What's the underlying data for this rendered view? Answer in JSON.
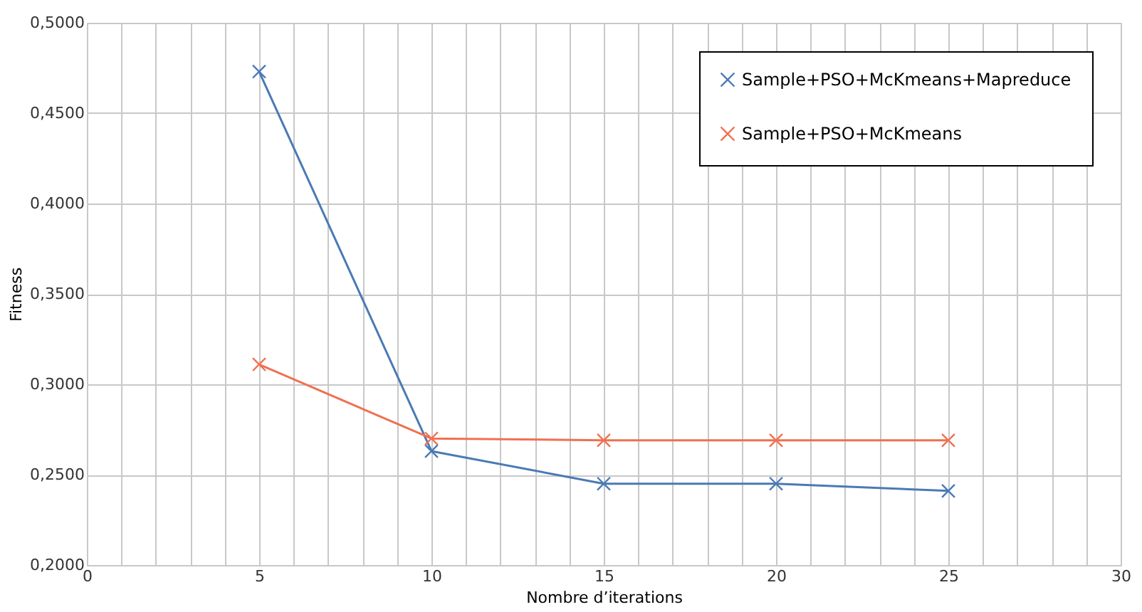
{
  "chart_data": {
    "type": "line",
    "xlabel": "Nombre d’iterations",
    "ylabel": "Fitness",
    "x": [
      5,
      10,
      15,
      20,
      25
    ],
    "series": [
      {
        "name": "Sample+PSO+McKmeans+Mapreduce",
        "color": "#4a7ab5",
        "values": [
          0.473,
          0.263,
          0.245,
          0.245,
          0.241
        ]
      },
      {
        "name": "Sample+PSO+McKmeans",
        "color": "#f07050",
        "values": [
          0.311,
          0.27,
          0.269,
          0.269,
          0.269
        ]
      }
    ],
    "xlim": [
      0,
      30
    ],
    "xticks": [
      0,
      {
        "value": 1,
        "label": null
      },
      {
        "value": 2,
        "label": null
      },
      {
        "value": 3,
        "label": null
      },
      {
        "value": 4,
        "label": null
      },
      5,
      {
        "value": 6,
        "label": null
      },
      {
        "value": 7,
        "label": null
      },
      {
        "value": 8,
        "label": null
      },
      {
        "value": 9,
        "label": null
      },
      10,
      {
        "value": 11,
        "label": null
      },
      {
        "value": 12,
        "label": null
      },
      {
        "value": 13,
        "label": null
      },
      {
        "value": 14,
        "label": null
      },
      15,
      {
        "value": 16,
        "label": null
      },
      {
        "value": 17,
        "label": null
      },
      {
        "value": 18,
        "label": null
      },
      {
        "value": 19,
        "label": null
      },
      20,
      {
        "value": 21,
        "label": null
      },
      {
        "value": 22,
        "label": null
      },
      {
        "value": 23,
        "label": null
      },
      {
        "value": 24,
        "label": null
      },
      25,
      {
        "value": 26,
        "label": null
      },
      {
        "value": 27,
        "label": null
      },
      {
        "value": 28,
        "label": null
      },
      {
        "value": 29,
        "label": null
      },
      30
    ],
    "ylim": [
      0.2,
      0.5
    ],
    "yticks": [
      {
        "value": 0.2,
        "label": "0,2000"
      },
      {
        "value": 0.25,
        "label": "0,2500"
      },
      {
        "value": 0.3,
        "label": "0,3000"
      },
      {
        "value": 0.35,
        "label": "0,3500"
      },
      {
        "value": 0.4,
        "label": "0,4000"
      },
      {
        "value": 0.45,
        "label": "0,4500"
      },
      {
        "value": 0.5,
        "label": "0,5000"
      }
    ],
    "grid": true,
    "legend": "top right",
    "marker": "cross",
    "line_style": "solid"
  }
}
